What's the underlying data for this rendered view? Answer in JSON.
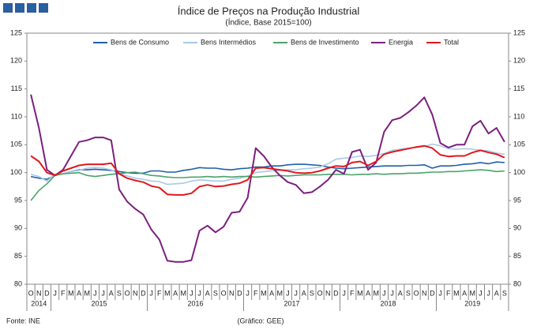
{
  "chart_data": {
    "type": "line",
    "title": "Índice de Preços na Produção Industrial",
    "subtitle": "(Índice, Base 2015=100)",
    "source": "Fonte: INE",
    "credit": "(Gráfico: GEE)",
    "categories": [
      "O",
      "N",
      "D",
      "J",
      "F",
      "M",
      "A",
      "M",
      "J",
      "J",
      "A",
      "S",
      "O",
      "N",
      "D",
      "J",
      "F",
      "M",
      "A",
      "M",
      "J",
      "J",
      "A",
      "S",
      "O",
      "N",
      "D",
      "J",
      "F",
      "M",
      "A",
      "M",
      "J",
      "J",
      "A",
      "S",
      "O",
      "N",
      "D",
      "J",
      "F",
      "M",
      "A",
      "M",
      "J",
      "J",
      "A",
      "S",
      "O",
      "N",
      "D",
      "J",
      "F",
      "M",
      "A",
      "M",
      "J",
      "J",
      "A",
      "S"
    ],
    "years": [
      "2014",
      "2015",
      "2016",
      "2017",
      "2018",
      "2019"
    ],
    "ylim": [
      80,
      125
    ],
    "yticks": [
      80,
      85,
      90,
      95,
      100,
      105,
      110,
      115,
      120,
      125
    ],
    "series": [
      {
        "name": "Bens de Consumo",
        "color": "#1f5fa8",
        "values": [
          99.3,
          99,
          98.8,
          99.5,
          99.8,
          100.2,
          100.5,
          100.5,
          100.6,
          100.5,
          100.4,
          100.2,
          100,
          99.9,
          99.9,
          100.3,
          100.3,
          100.1,
          100.1,
          100.4,
          100.6,
          100.9,
          100.8,
          100.8,
          100.6,
          100.5,
          100.7,
          100.8,
          101,
          101,
          101.2,
          101.2,
          101.4,
          101.5,
          101.5,
          101.4,
          101.3,
          101,
          100.8,
          100.7,
          100.8,
          100.9,
          101,
          101.1,
          101.2,
          101.2,
          101.2,
          101.3,
          101.3,
          101.4,
          100.8,
          101.2,
          101.2,
          101.3,
          101.5,
          101.6,
          101.8,
          101.6,
          101.9,
          101.8
        ]
      },
      {
        "name": "Bens Intermédios",
        "color": "#a8c8ea",
        "values": [
          99.7,
          99.3,
          98.5,
          99.7,
          99.8,
          100.2,
          100.4,
          100.8,
          100.9,
          100.8,
          100.5,
          99.8,
          99.4,
          99,
          98.8,
          98.5,
          98.4,
          97.9,
          98,
          98.1,
          98.5,
          98.7,
          98.6,
          98.5,
          98.5,
          98.8,
          99,
          99.4,
          100,
          100.2,
          100.3,
          100.4,
          100.5,
          100.5,
          100.7,
          100.8,
          101,
          101.6,
          102.4,
          102.6,
          102.7,
          103,
          102.9,
          103.1,
          103.4,
          104,
          104.2,
          104.4,
          104.5,
          104.7,
          105.1,
          104.8,
          104.3,
          104.2,
          104.3,
          104.2,
          104,
          103.9,
          103.5,
          103.3
        ]
      },
      {
        "name": "Bens de Investimento",
        "color": "#4aa36a",
        "values": [
          95,
          96.8,
          98,
          99.5,
          99.8,
          99.9,
          100,
          99.5,
          99.3,
          99.5,
          99.7,
          99.8,
          100,
          100.1,
          99.8,
          99.5,
          99.4,
          99.2,
          99.1,
          99.1,
          99.2,
          99.2,
          99.3,
          99.2,
          99.3,
          99.2,
          99.3,
          99.3,
          99.2,
          99.3,
          99.4,
          99.5,
          99.4,
          99.5,
          99.6,
          99.6,
          99.6,
          99.7,
          99.7,
          99.7,
          99.6,
          99.7,
          99.7,
          99.8,
          99.7,
          99.8,
          99.8,
          99.9,
          99.9,
          100,
          100.1,
          100.1,
          100.2,
          100.2,
          100.3,
          100.4,
          100.5,
          100.4,
          100.2,
          100.3
        ]
      },
      {
        "name": "Energia",
        "color": "#7b1f7f",
        "values": [
          114,
          108,
          100.5,
          99.5,
          100.5,
          103,
          105.5,
          105.8,
          106.3,
          106.3,
          105.8,
          97,
          94.8,
          93.5,
          92.5,
          89.8,
          88,
          84.2,
          84,
          84,
          84.3,
          89.6,
          90.5,
          89.3,
          90.3,
          92.8,
          93,
          95.5,
          104.4,
          103,
          101,
          99.5,
          98.3,
          97.8,
          96.3,
          96.5,
          97.5,
          98.7,
          100.5,
          99.8,
          103.7,
          104.1,
          100.5,
          101.8,
          107.3,
          109.4,
          109.8,
          110.8,
          112,
          113.5,
          110.4,
          105.3,
          104.5,
          105,
          105,
          108.3,
          109.3,
          107,
          108,
          105.5
        ]
      },
      {
        "name": "Total",
        "color": "#e0191e",
        "values": [
          103,
          102,
          100,
          99.5,
          100.3,
          100.8,
          101.3,
          101.5,
          101.5,
          101.5,
          101.7,
          99.8,
          99,
          98.6,
          98.3,
          97.6,
          97.3,
          96.1,
          96,
          96,
          96.3,
          97.5,
          97.8,
          97.5,
          97.6,
          97.9,
          98.1,
          98.7,
          100.8,
          100.9,
          100.7,
          100.5,
          100.3,
          100,
          99.9,
          100,
          100.3,
          100.8,
          101.2,
          101.1,
          101.8,
          102,
          101.3,
          102,
          103.3,
          103.7,
          104,
          104.3,
          104.6,
          104.8,
          104.4,
          103.2,
          102.9,
          103,
          103,
          103.6,
          104,
          103.6,
          103.3,
          102.7
        ]
      }
    ]
  }
}
